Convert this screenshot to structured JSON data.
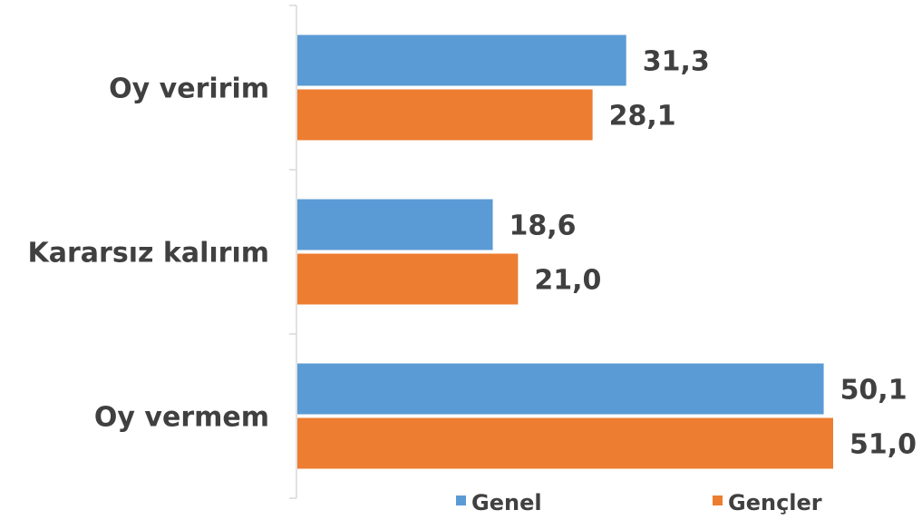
{
  "chart_data": {
    "type": "bar",
    "orientation": "horizontal",
    "categories": [
      "Oy veririm",
      "Kararsız kalırım",
      "Oy vermem"
    ],
    "series": [
      {
        "name": "Genel",
        "color": "#5b9bd5",
        "values": [
          31.3,
          18.6,
          50.1
        ],
        "labels": [
          "31,3",
          "18,6",
          "50,1"
        ]
      },
      {
        "name": "Gençler",
        "color": "#ed7d31",
        "values": [
          28.1,
          21.0,
          51.0
        ],
        "labels": [
          "28,1",
          "21,0",
          "51,0"
        ]
      }
    ],
    "xlim": [
      0,
      51
    ],
    "grid": false,
    "legend_position": "bottom"
  }
}
